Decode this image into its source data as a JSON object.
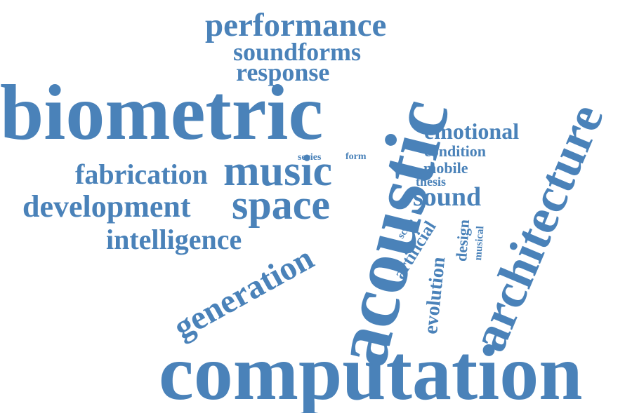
{
  "cloud": {
    "color": "#4a82b9",
    "words": [
      {
        "name": "word-computation",
        "text": "computation",
        "orientation": "horizontal"
      },
      {
        "name": "word-biometric",
        "text": "biometric",
        "orientation": "horizontal"
      },
      {
        "name": "word-acoustic",
        "text": "acoustic",
        "orientation": "vertical"
      },
      {
        "name": "word-architecture",
        "text": "architecture",
        "orientation": "rotated"
      },
      {
        "name": "word-performance",
        "text": "performance",
        "orientation": "horizontal"
      },
      {
        "name": "word-soundforms",
        "text": "soundforms",
        "orientation": "horizontal"
      },
      {
        "name": "word-response",
        "text": "response",
        "orientation": "horizontal"
      },
      {
        "name": "word-music",
        "text": "music",
        "orientation": "horizontal"
      },
      {
        "name": "word-space",
        "text": "space",
        "orientation": "horizontal"
      },
      {
        "name": "word-fabrication",
        "text": "fabrication",
        "orientation": "horizontal"
      },
      {
        "name": "word-development",
        "text": "development",
        "orientation": "horizontal"
      },
      {
        "name": "word-intelligence",
        "text": "intelligence",
        "orientation": "horizontal"
      },
      {
        "name": "word-generation",
        "text": "generation",
        "orientation": "rotated"
      },
      {
        "name": "word-emotional",
        "text": "emotional",
        "orientation": "horizontal"
      },
      {
        "name": "word-condition",
        "text": "condition",
        "orientation": "horizontal"
      },
      {
        "name": "word-mobile",
        "text": "mobile",
        "orientation": "horizontal"
      },
      {
        "name": "word-thesis",
        "text": "thesis",
        "orientation": "horizontal"
      },
      {
        "name": "word-sound",
        "text": "sound",
        "orientation": "horizontal"
      },
      {
        "name": "word-series",
        "text": "series",
        "orientation": "horizontal"
      },
      {
        "name": "word-form",
        "text": "form",
        "orientation": "horizontal"
      },
      {
        "name": "word-scale",
        "text": "scale",
        "orientation": "rotated"
      },
      {
        "name": "word-artificial",
        "text": "artificial",
        "orientation": "rotated"
      },
      {
        "name": "word-evolution",
        "text": "evolution",
        "orientation": "vertical"
      },
      {
        "name": "word-design",
        "text": "design",
        "orientation": "vertical"
      },
      {
        "name": "word-musical",
        "text": "musical",
        "orientation": "vertical"
      }
    ]
  }
}
